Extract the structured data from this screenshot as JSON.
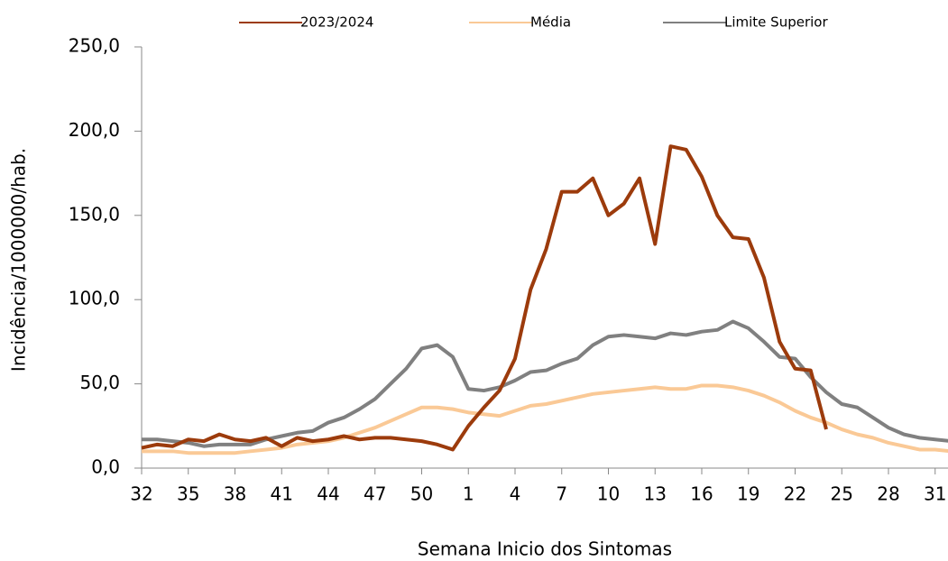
{
  "chart_data": {
    "type": "line",
    "xlabel": "Semana Inicio dos Sintomas",
    "ylabel": "Incidência/1000000/hab.",
    "categories": [
      "32",
      null,
      null,
      "35",
      null,
      null,
      "38",
      null,
      null,
      "41",
      null,
      null,
      "44",
      null,
      null,
      "47",
      null,
      null,
      "50",
      null,
      null,
      "1",
      null,
      null,
      "4",
      null,
      null,
      "7",
      null,
      null,
      "10",
      null,
      null,
      "13",
      null,
      null,
      "16",
      null,
      null,
      "19",
      null,
      null,
      "22",
      null,
      null,
      "25",
      null,
      null,
      "28",
      null,
      null,
      "31",
      null
    ],
    "series": [
      {
        "name": "2023/2024",
        "color": "#9c3b0c",
        "values": [
          12,
          14,
          13,
          17,
          16,
          20,
          17,
          16,
          18,
          13,
          18,
          16,
          17,
          19,
          17,
          18,
          18,
          17,
          16,
          14,
          11,
          25,
          36,
          46,
          65,
          106,
          130,
          164,
          164,
          172,
          150,
          157,
          172,
          133,
          191,
          189,
          173,
          150,
          137,
          136,
          113,
          75,
          59,
          58,
          23,
          null,
          null,
          null,
          null,
          null,
          null,
          null,
          null
        ]
      },
      {
        "name": "Média",
        "color": "#fac996",
        "values": [
          10,
          10,
          10,
          9,
          9,
          9,
          9,
          10,
          11,
          12,
          14,
          15,
          16,
          18,
          21,
          24,
          28,
          32,
          36,
          36,
          35,
          33,
          32,
          31,
          34,
          37,
          38,
          40,
          42,
          44,
          45,
          46,
          47,
          48,
          47,
          47,
          49,
          49,
          48,
          46,
          43,
          39,
          34,
          30,
          27,
          23,
          20,
          18,
          15,
          13,
          11,
          11,
          10
        ]
      },
      {
        "name": "Limite Superior",
        "color": "#808080",
        "values": [
          17,
          17,
          16,
          15,
          13,
          14,
          14,
          14,
          17,
          19,
          21,
          22,
          27,
          30,
          35,
          41,
          50,
          59,
          71,
          73,
          66,
          47,
          46,
          48,
          52,
          57,
          58,
          62,
          65,
          73,
          78,
          79,
          78,
          77,
          80,
          79,
          81,
          82,
          87,
          83,
          75,
          66,
          65,
          54,
          45,
          38,
          36,
          30,
          24,
          20,
          18,
          17,
          16
        ]
      }
    ],
    "ylim": [
      0,
      250
    ],
    "yticks": [
      {
        "value": 0,
        "label": "0,0"
      },
      {
        "value": 50,
        "label": "50,0"
      },
      {
        "value": 100,
        "label": "100,0"
      },
      {
        "value": 150,
        "label": "150,0"
      },
      {
        "value": 200,
        "label": "200,0"
      },
      {
        "value": 250,
        "label": "250,0"
      }
    ],
    "legend": "top"
  }
}
